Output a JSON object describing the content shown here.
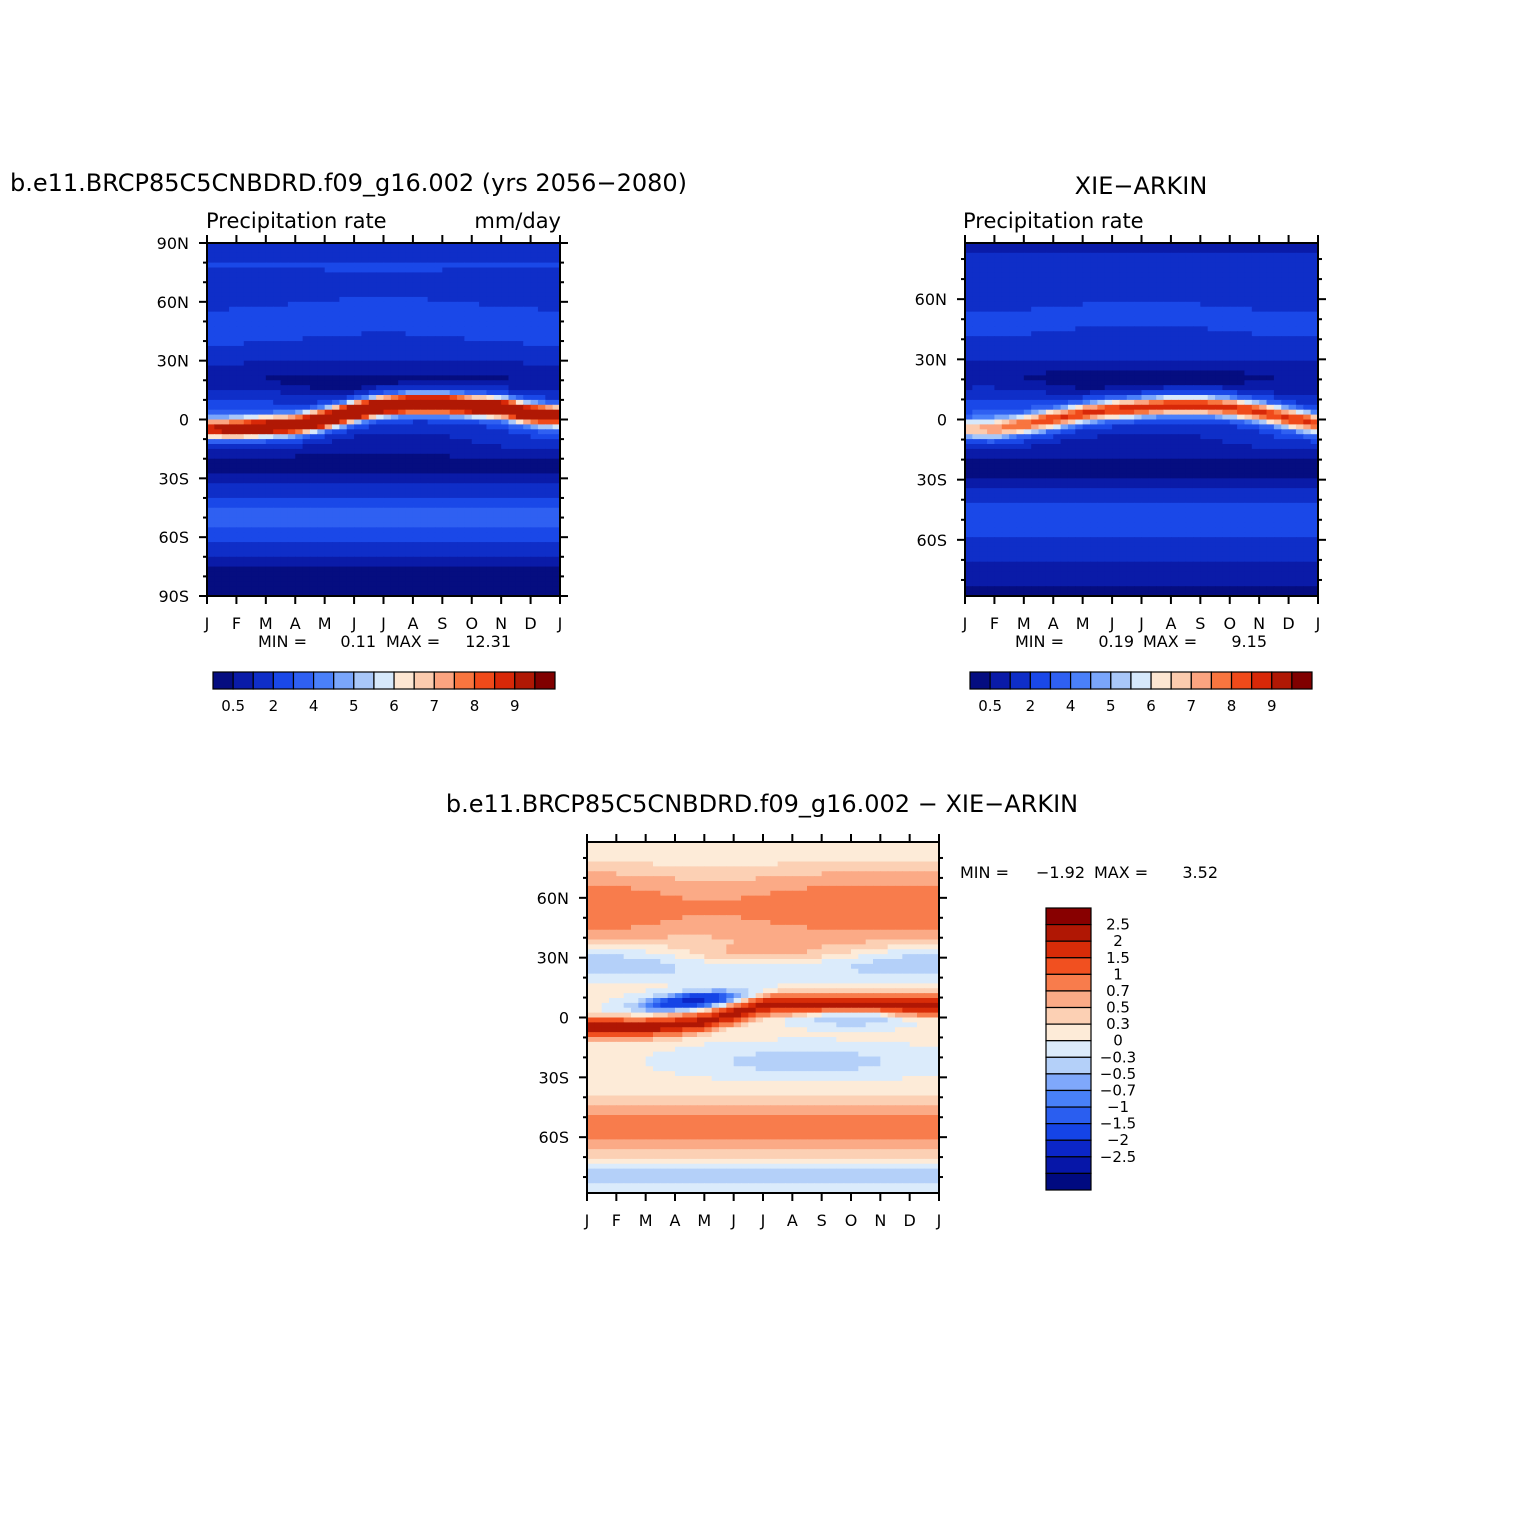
{
  "chart_data": [
    {
      "type": "heatmap",
      "title": "b.e11.BRCP85C5CNBDRD.f09_g16.002 (yrs 2056−2080)",
      "subtitle_left": "Precipitation  rate",
      "subtitle_right": "mm/day",
      "x_tick_labels": [
        "J",
        "F",
        "M",
        "A",
        "M",
        "J",
        "J",
        "A",
        "S",
        "O",
        "N",
        "D",
        "J"
      ],
      "y_tick_labels": [
        "90N",
        "60N",
        "30N",
        "0",
        "30S",
        "60S",
        "90S"
      ],
      "y_tick_values": [
        90,
        60,
        30,
        0,
        -30,
        -60,
        -90
      ],
      "ylim": [
        -90,
        90
      ],
      "min_label": "MIN =",
      "min_value": "0.11",
      "max_label": "MAX =",
      "max_value": "12.31",
      "colorbar_labels": [
        "0.5",
        "2",
        "4",
        "5",
        "6",
        "7",
        "8",
        "9"
      ],
      "colorbar_levels": [
        0.5,
        1,
        2,
        3,
        4,
        4.5,
        5,
        5.5,
        6,
        6.5,
        7,
        7.5,
        8,
        8.5,
        9
      ],
      "features": {
        "itcz_peak": 12.31,
        "itcz_path": [
          [
            0,
            -5
          ],
          [
            1,
            -5
          ],
          [
            2,
            -4
          ],
          [
            3,
            -3
          ],
          [
            4,
            0
          ],
          [
            5,
            4
          ],
          [
            6,
            7
          ],
          [
            7,
            8
          ],
          [
            8,
            8
          ],
          [
            9,
            7
          ],
          [
            10,
            6
          ],
          [
            11,
            3
          ],
          [
            12,
            2
          ]
        ],
        "polar_values": {
          "north": 1.2,
          "south": 0.4
        },
        "midlat_values": {
          "north": 2.5,
          "south": 3.5
        },
        "subtropic_values": {
          "north": 1.0,
          "south": 1.0
        }
      }
    },
    {
      "type": "heatmap",
      "title": "XIE−ARKIN",
      "subtitle_left": "Precipitation  rate",
      "x_tick_labels": [
        "J",
        "F",
        "M",
        "A",
        "M",
        "J",
        "J",
        "A",
        "S",
        "O",
        "N",
        "D",
        "J"
      ],
      "y_tick_labels": [
        "60N",
        "30N",
        "0",
        "30S",
        "60S"
      ],
      "y_tick_values": [
        60,
        30,
        0,
        -30,
        -60
      ],
      "ylim": [
        -88,
        88
      ],
      "min_label": "MIN =",
      "min_value": "0.19",
      "max_label": "MAX =",
      "max_value": "9.15",
      "colorbar_labels": [
        "0.5",
        "2",
        "4",
        "5",
        "6",
        "7",
        "8",
        "9"
      ],
      "colorbar_levels": [
        0.5,
        1,
        2,
        3,
        4,
        4.5,
        5,
        5.5,
        6,
        6.5,
        7,
        7.5,
        8,
        8.5,
        9
      ],
      "features": {
        "itcz_peak": 9.15,
        "itcz_path": [
          [
            0,
            -5
          ],
          [
            1,
            -5
          ],
          [
            2,
            -3
          ],
          [
            3,
            0
          ],
          [
            4,
            3
          ],
          [
            5,
            5
          ],
          [
            6,
            6
          ],
          [
            7,
            7
          ],
          [
            8,
            7
          ],
          [
            9,
            6
          ],
          [
            10,
            4
          ],
          [
            11,
            1
          ],
          [
            12,
            -2
          ]
        ],
        "polar_values": {
          "north": 0.6,
          "south": 0.8
        },
        "midlat_values": {
          "north": 2.2,
          "south": 2.8
        },
        "subtropic_values": {
          "north": 1.0,
          "south": 0.9
        }
      }
    },
    {
      "type": "heatmap",
      "title": "b.e11.BRCP85C5CNBDRD.f09_g16.002  −  XIE−ARKIN",
      "x_tick_labels": [
        "J",
        "F",
        "M",
        "A",
        "M",
        "J",
        "J",
        "A",
        "S",
        "O",
        "N",
        "D",
        "J"
      ],
      "y_tick_labels": [
        "60N",
        "30N",
        "0",
        "30S",
        "60S"
      ],
      "y_tick_values": [
        60,
        30,
        0,
        -30,
        -60
      ],
      "ylim": [
        -88,
        88
      ],
      "min_label": "MIN =",
      "min_value": "−1.92",
      "max_label": "MAX =",
      "max_value": "3.52",
      "colorbar_labels": [
        "2.5",
        "2",
        "1.5",
        "1",
        "0.7",
        "0.5",
        "0.3",
        "0",
        "−0.3",
        "−0.5",
        "−0.7",
        "−1",
        "−1.5",
        "−2",
        "−2.5"
      ],
      "colorbar_levels": [
        -2.5,
        -2,
        -1.5,
        -1,
        -0.7,
        -0.5,
        -0.3,
        0,
        0.3,
        0.5,
        0.7,
        1,
        1.5,
        2,
        2.5
      ]
    }
  ],
  "colors": {
    "precip_palette": [
      "#050d80",
      "#0a1ba8",
      "#0f2ec8",
      "#1a48e8",
      "#2f60f2",
      "#4a80fa",
      "#7aa6fb",
      "#a9c7f8",
      "#d6e8fb",
      "#fde6d2",
      "#fccbae",
      "#fca480",
      "#f8753f",
      "#f04a1a",
      "#d82808",
      "#b01804",
      "#800000"
    ],
    "diff_palette": [
      "#000a80",
      "#0616a8",
      "#0b26c8",
      "#1544e6",
      "#2a5ef0",
      "#4880f8",
      "#7fa8fb",
      "#b4d0f9",
      "#dbebfb",
      "#fdebd8",
      "#fcd0b4",
      "#fbaa86",
      "#f87c4c",
      "#f15020",
      "#d82c08",
      "#b01704",
      "#880000"
    ]
  }
}
